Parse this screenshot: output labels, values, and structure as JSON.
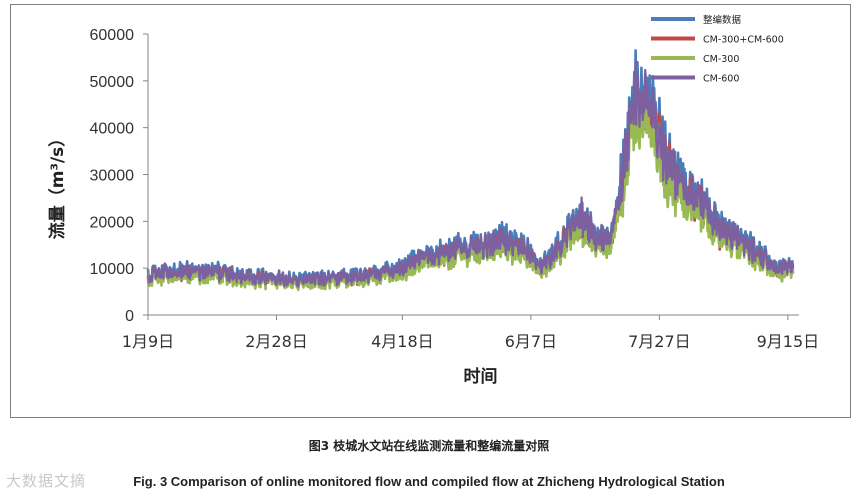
{
  "chart_data": {
    "type": "line",
    "ylabel": "流量（m³/s）",
    "xlabel": "时间",
    "ylim": [
      0,
      60000
    ],
    "yticks": [
      "0",
      "10000",
      "20000",
      "30000",
      "40000",
      "50000",
      "60000"
    ],
    "x_domain": [
      "01-09",
      "09-17"
    ],
    "x_tick_labels": [
      {
        "date": "01-09",
        "label": "1月9日"
      },
      {
        "date": "02-28",
        "label": "2月28日"
      },
      {
        "date": "04-18",
        "label": "4月18日"
      },
      {
        "date": "06-07",
        "label": "6月7日"
      },
      {
        "date": "07-27",
        "label": "7月27日"
      },
      {
        "date": "09-15",
        "label": "9月15日"
      }
    ],
    "grid": false,
    "legend_position": "top-right",
    "series": [
      {
        "name": "整编数据",
        "color": "#4a7ebb",
        "offset": 800
      },
      {
        "name": "CM-300+CM-600",
        "color": "#be4b48",
        "offset": -600
      },
      {
        "name": "CM-300",
        "color": "#98b954",
        "offset": -1500
      },
      {
        "name": "CM-600",
        "color": "#7d60a0",
        "offset": 0
      }
    ],
    "flow_profile": [
      {
        "date": "01-09",
        "value": 8500
      },
      {
        "date": "01-20",
        "value": 9500
      },
      {
        "date": "02-05",
        "value": 9000
      },
      {
        "date": "02-20",
        "value": 8000
      },
      {
        "date": "03-10",
        "value": 7500
      },
      {
        "date": "03-25",
        "value": 8000
      },
      {
        "date": "04-05",
        "value": 8500
      },
      {
        "date": "04-18",
        "value": 10000
      },
      {
        "date": "04-28",
        "value": 12500
      },
      {
        "date": "05-10",
        "value": 14000
      },
      {
        "date": "05-20",
        "value": 15000
      },
      {
        "date": "05-28",
        "value": 16000
      },
      {
        "date": "06-05",
        "value": 14000
      },
      {
        "date": "06-10",
        "value": 10000
      },
      {
        "date": "06-15",
        "value": 12000
      },
      {
        "date": "06-20",
        "value": 16000
      },
      {
        "date": "06-27",
        "value": 21000
      },
      {
        "date": "07-03",
        "value": 15000
      },
      {
        "date": "07-08",
        "value": 18000
      },
      {
        "date": "07-13",
        "value": 30000
      },
      {
        "date": "07-17",
        "value": 45000
      },
      {
        "date": "07-19",
        "value": 48500
      },
      {
        "date": "07-22",
        "value": 44000
      },
      {
        "date": "07-28",
        "value": 36000
      },
      {
        "date": "08-03",
        "value": 28000
      },
      {
        "date": "08-12",
        "value": 25000
      },
      {
        "date": "08-20",
        "value": 18000
      },
      {
        "date": "08-30",
        "value": 15000
      },
      {
        "date": "09-08",
        "value": 11000
      },
      {
        "date": "09-17",
        "value": 9500
      }
    ]
  },
  "caption_cn": "图3 枝城水文站在线监测流量和整编流量对照",
  "caption_en": "Fig. 3 Comparison of online monitored flow and compiled flow at Zhicheng Hydrological Station",
  "watermark": "大数据文摘"
}
